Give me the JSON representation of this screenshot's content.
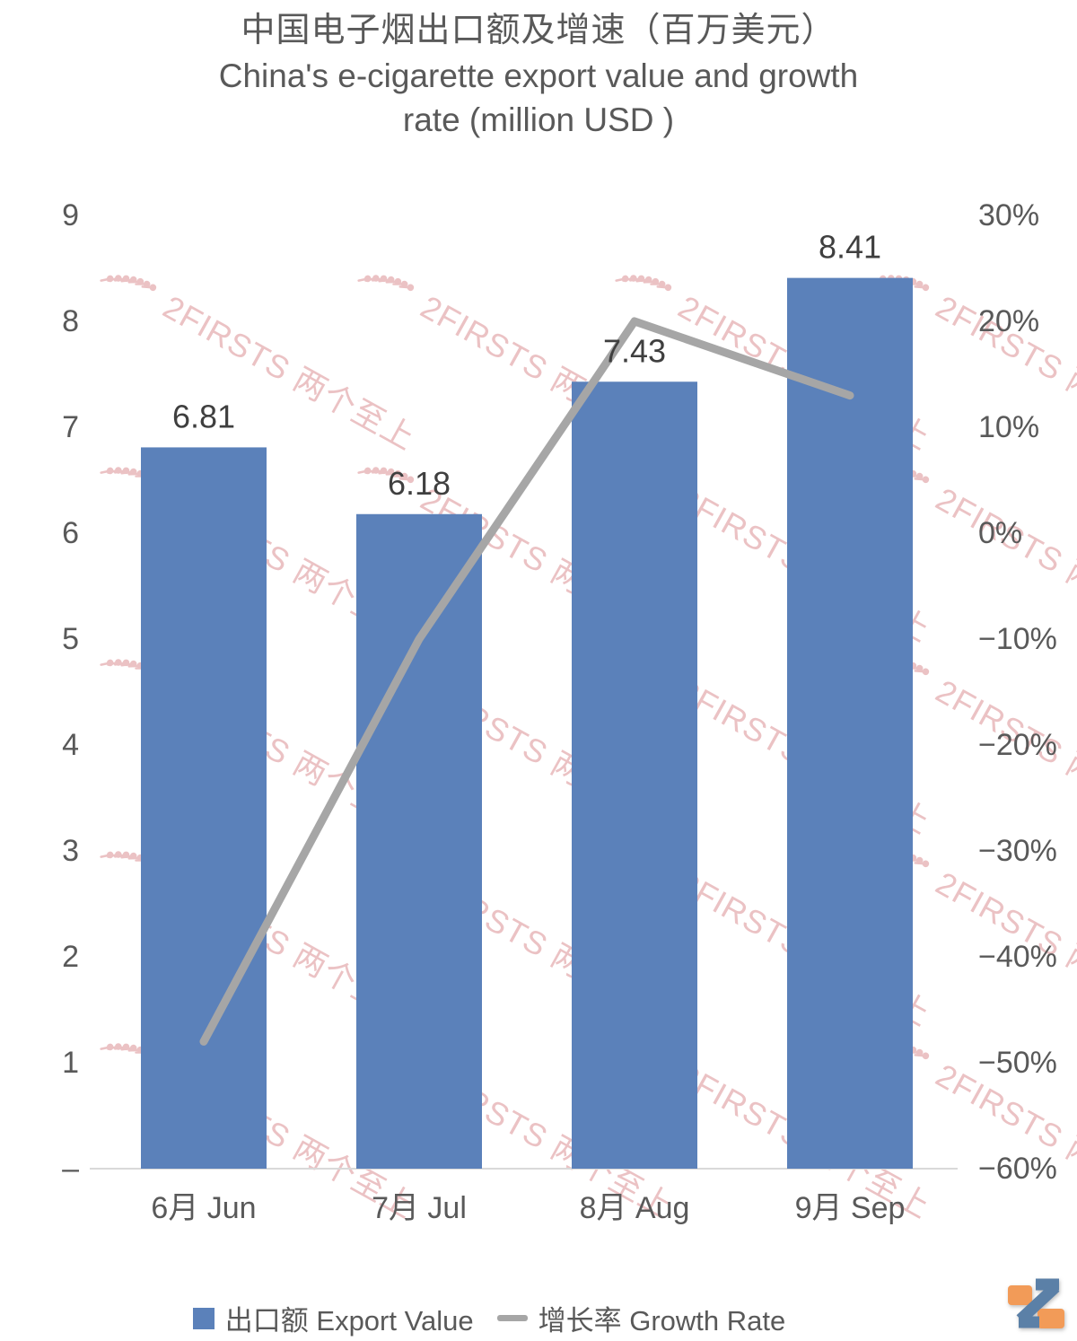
{
  "title": {
    "line1": "中国电子烟出口额及增速（百万美元）",
    "line2": "China's e-cigarette export value and growth",
    "line3": "rate (million USD )"
  },
  "watermark": {
    "text": "2FIRSTS 两个至上"
  },
  "legend": {
    "bar_label": "出口额 Export Value",
    "line_label": "增长率 Growth Rate"
  },
  "colors": {
    "bar": "#5B81BA",
    "line": "#A6A6A6",
    "axis_line": "#D9D9D9",
    "text": "#595959",
    "bar_label_text": "#3F3F3F",
    "watermark": "#E9BCBE",
    "logo_orange": "#F29B58",
    "logo_blue": "#5B80A7"
  },
  "chart_data": {
    "type": "bar",
    "subtype": "combo-bar-line-dual-axis",
    "title": "中国电子烟出口额及增速（百万美元） China's e-cigarette export value and growth rate (million USD )",
    "categories": [
      "6月 Jun",
      "7月 Jul",
      "8月 Aug",
      "9月 Sep"
    ],
    "series": [
      {
        "name": "出口额 Export Value",
        "type": "bar",
        "axis": "left",
        "unit": "million USD",
        "values": [
          6.81,
          6.18,
          7.43,
          8.41
        ]
      },
      {
        "name": "增长率 Growth Rate",
        "type": "line",
        "axis": "right",
        "unit": "%",
        "values": [
          -48,
          -10,
          20,
          13
        ]
      }
    ],
    "bar_labels": [
      "6.81",
      "6.18",
      "7.43",
      "8.41"
    ],
    "left_axis": {
      "range": [
        0,
        9
      ],
      "ticks": [
        "9",
        "8",
        "7",
        "6",
        "5",
        "4",
        "3",
        "2",
        "1",
        "–"
      ]
    },
    "right_axis": {
      "range": [
        -60,
        30
      ],
      "ticks": [
        "30%",
        "20%",
        "10%",
        "0%",
        "−10%",
        "−20%",
        "−30%",
        "−40%",
        "−50%",
        "−60%"
      ]
    },
    "grid": false,
    "legend_position": "bottom"
  }
}
